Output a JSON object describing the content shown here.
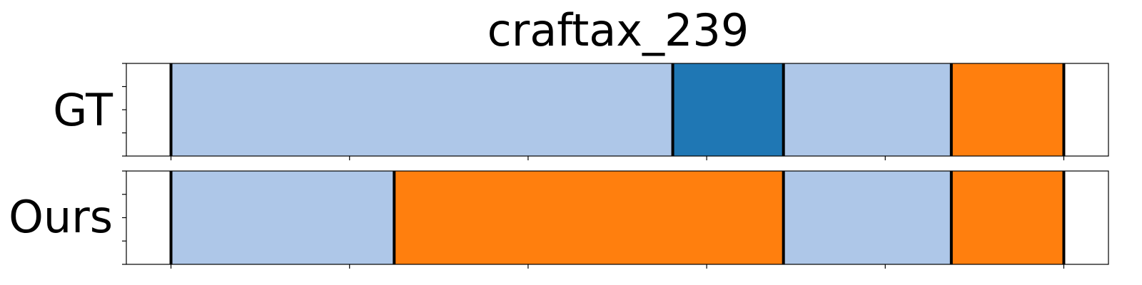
{
  "chart_data": {
    "type": "segmentation-timeline",
    "title": "craftax_239",
    "xlim": [
      -0.25,
      5.25
    ],
    "x_ticks": [
      0,
      1,
      2,
      3,
      4,
      5
    ],
    "rows": [
      {
        "label": "GT",
        "segments": [
          {
            "start": 0.0,
            "end": 2.81,
            "color": "#aec7e8"
          },
          {
            "start": 2.81,
            "end": 3.43,
            "color": "#1f77b4"
          },
          {
            "start": 3.43,
            "end": 4.37,
            "color": "#aec7e8"
          },
          {
            "start": 4.37,
            "end": 5.0,
            "color": "#ff7f0e"
          }
        ]
      },
      {
        "label": "Ours",
        "segments": [
          {
            "start": 0.0,
            "end": 1.25,
            "color": "#aec7e8"
          },
          {
            "start": 1.25,
            "end": 3.43,
            "color": "#ff7f0e"
          },
          {
            "start": 3.43,
            "end": 4.37,
            "color": "#aec7e8"
          },
          {
            "start": 4.37,
            "end": 5.0,
            "color": "#ff7f0e"
          }
        ]
      }
    ]
  }
}
